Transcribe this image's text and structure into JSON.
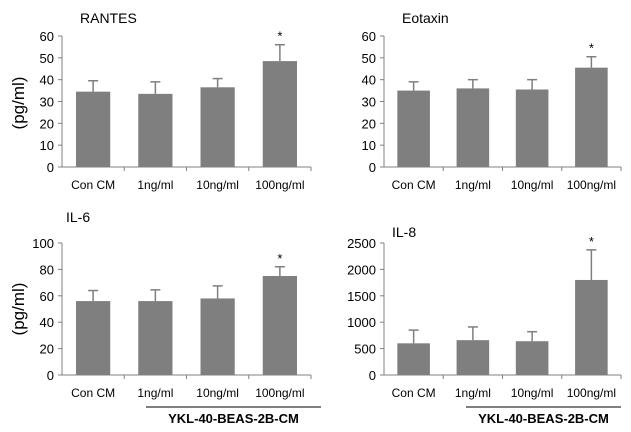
{
  "colors": {
    "bar": "#7f7f7f",
    "axis": "#808080",
    "text": "#000000"
  },
  "shared": {
    "ylabel": "(pg/ml)",
    "group_label": "YKL-40-BEAS-2B-CM"
  },
  "chart_data": [
    {
      "type": "bar",
      "title": "RANTES",
      "categories": [
        "Con CM",
        "1ng/ml",
        "10ng/ml",
        "100ng/ml"
      ],
      "values": [
        34.5,
        33.5,
        36.5,
        48.5
      ],
      "errors": [
        5,
        5.5,
        4,
        7.5
      ],
      "significance": [
        "",
        "",
        "",
        "*"
      ],
      "ylabel": "(pg/ml)",
      "ylim": [
        0,
        60
      ],
      "yticks": [
        "0",
        "10",
        "20",
        "30",
        "40",
        "50",
        "60"
      ],
      "grid": false
    },
    {
      "type": "bar",
      "title": "Eotaxin",
      "categories": [
        "Con CM",
        "1ng/ml",
        "10ng/ml",
        "100ng/ml"
      ],
      "values": [
        35,
        36,
        35.5,
        45.5
      ],
      "errors": [
        4,
        4,
        4.5,
        5
      ],
      "significance": [
        "",
        "",
        "",
        "*"
      ],
      "ylim": [
        0,
        60
      ],
      "yticks": [
        "0",
        "10",
        "20",
        "30",
        "40",
        "50",
        "60"
      ],
      "grid": false
    },
    {
      "type": "bar",
      "title": "IL-6",
      "categories": [
        "Con CM",
        "1ng/ml",
        "10ng/ml",
        "100ng/ml"
      ],
      "values": [
        56,
        56,
        58,
        75
      ],
      "errors": [
        8,
        8.5,
        9.5,
        7
      ],
      "significance": [
        "",
        "",
        "",
        "*"
      ],
      "ylabel": "(pg/ml)",
      "ylim": [
        0,
        100
      ],
      "yticks": [
        "0",
        "20",
        "40",
        "60",
        "80",
        "100"
      ],
      "group_label": "YKL-40-BEAS-2B-CM",
      "grid": false
    },
    {
      "type": "bar",
      "title": "IL-8",
      "categories": [
        "Con CM",
        "1ng/ml",
        "10ng/ml",
        "100ng/ml"
      ],
      "values": [
        600,
        660,
        640,
        1800
      ],
      "errors": [
        250,
        250,
        180,
        570
      ],
      "significance": [
        "",
        "",
        "",
        "*"
      ],
      "ylim": [
        0,
        2500
      ],
      "yticks": [
        "0",
        "500",
        "1000",
        "1500",
        "2000",
        "2500"
      ],
      "group_label": "YKL-40-BEAS-2B-CM",
      "grid": false
    }
  ]
}
